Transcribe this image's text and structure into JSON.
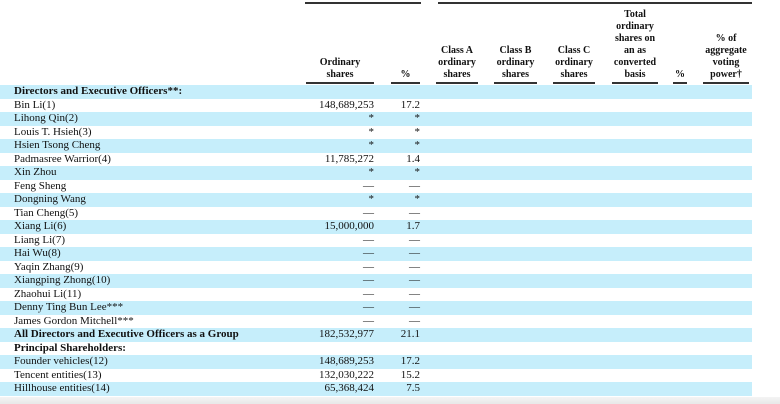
{
  "headers": {
    "ordinary_shares": [
      "Ordinary",
      "shares"
    ],
    "pct": [
      "%"
    ],
    "class_a": [
      "Class A",
      "ordinary",
      "shares"
    ],
    "class_b": [
      "Class B",
      "ordinary",
      "shares"
    ],
    "class_c": [
      "Class C",
      "ordinary",
      "shares"
    ],
    "total": [
      "Total",
      "ordinary",
      "shares on",
      "an as",
      "converted",
      "basis"
    ],
    "pct2": [
      "%"
    ],
    "voting": [
      "% of",
      "aggregate",
      "voting",
      "power†"
    ]
  },
  "rows": [
    {
      "name": "Directors and Executive Officers**:",
      "shares": "",
      "pct": "",
      "bold": true
    },
    {
      "name": "Bin Li(1)",
      "shares": "148,689,253",
      "pct": "17.2"
    },
    {
      "name": "Lihong Qin(2)",
      "shares": "*",
      "pct": "*"
    },
    {
      "name": "Louis T. Hsieh(3)",
      "shares": "*",
      "pct": "*"
    },
    {
      "name": "Hsien Tsong Cheng",
      "shares": "*",
      "pct": "*"
    },
    {
      "name": "Padmasree Warrior(4)",
      "shares": "11,785,272",
      "pct": "1.4"
    },
    {
      "name": "Xin Zhou",
      "shares": "*",
      "pct": "*"
    },
    {
      "name": "Feng Sheng",
      "shares": "—",
      "pct": "—"
    },
    {
      "name": "Dongning Wang",
      "shares": "*",
      "pct": "*"
    },
    {
      "name": "Tian Cheng(5)",
      "shares": "—",
      "pct": "—"
    },
    {
      "name": "Xiang Li(6)",
      "shares": "15,000,000",
      "pct": "1.7"
    },
    {
      "name": "Liang Li(7)",
      "shares": "—",
      "pct": "—"
    },
    {
      "name": "Hai Wu(8)",
      "shares": "—",
      "pct": "—"
    },
    {
      "name": "Yaqin Zhang(9)",
      "shares": "—",
      "pct": "—"
    },
    {
      "name": "Xiangping Zhong(10)",
      "shares": "—",
      "pct": "—"
    },
    {
      "name": "Zhaohui Li(11)",
      "shares": "—",
      "pct": "—"
    },
    {
      "name": "Denny Ting Bun Lee***",
      "shares": "—",
      "pct": "—"
    },
    {
      "name": "James Gordon Mitchell***",
      "shares": "—",
      "pct": "—"
    },
    {
      "name": "All Directors and Executive Officers as a Group",
      "shares": "182,532,977",
      "pct": "21.1",
      "bold": true
    },
    {
      "name": "Principal Shareholders:",
      "shares": "",
      "pct": "",
      "bold": true
    },
    {
      "name": "Founder vehicles(12)",
      "shares": "148,689,253",
      "pct": "17.2"
    },
    {
      "name": "Tencent entities(13)",
      "shares": "132,030,222",
      "pct": "15.2"
    },
    {
      "name": "Hillhouse entities(14)",
      "shares": "65,368,424",
      "pct": "7.5"
    }
  ],
  "colors": {
    "row_shade": "#c6eefb",
    "rule": "#333333"
  }
}
